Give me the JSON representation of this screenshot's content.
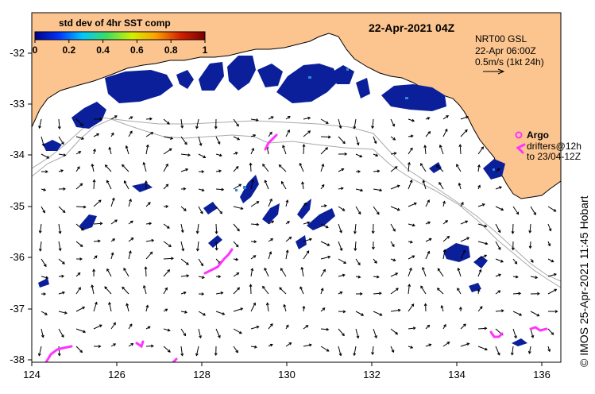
{
  "map": {
    "title": "22-Apr-2021 04Z",
    "x_ticks": [
      "124",
      "126",
      "128",
      "130",
      "132",
      "134",
      "136"
    ],
    "y_ticks": [
      "-32",
      "-33",
      "-34",
      "-35",
      "-36",
      "-37",
      "-38"
    ],
    "land_color": "#fcc58f",
    "coast_color": "#000000",
    "isobath_color": "#a9a9a9",
    "arrow_color": "#000000"
  },
  "colorbar": {
    "label": "std dev of 4hr SST comp",
    "ticks": [
      "0",
      "0.2",
      "0.4",
      "0.6",
      "0.8",
      "1"
    ],
    "colors": [
      "#00008b",
      "#0033ff",
      "#00c8ff",
      "#3cdc64",
      "#d2f000",
      "#ffa000",
      "#d21e00",
      "#780000"
    ]
  },
  "currents_legend": {
    "line1": "NRT00 GSL",
    "line2": "22-Apr 06:00Z",
    "line3": "0.5m/s (1kt 24h)"
  },
  "drifter_legend": {
    "argo_label": "Argo",
    "line1": "drifters@12h",
    "line2": "to 23/04-12Z",
    "marker_color": "#ff33ff"
  },
  "credit": "© IMOS 25-Apr-2021 11:45 Hobart"
}
